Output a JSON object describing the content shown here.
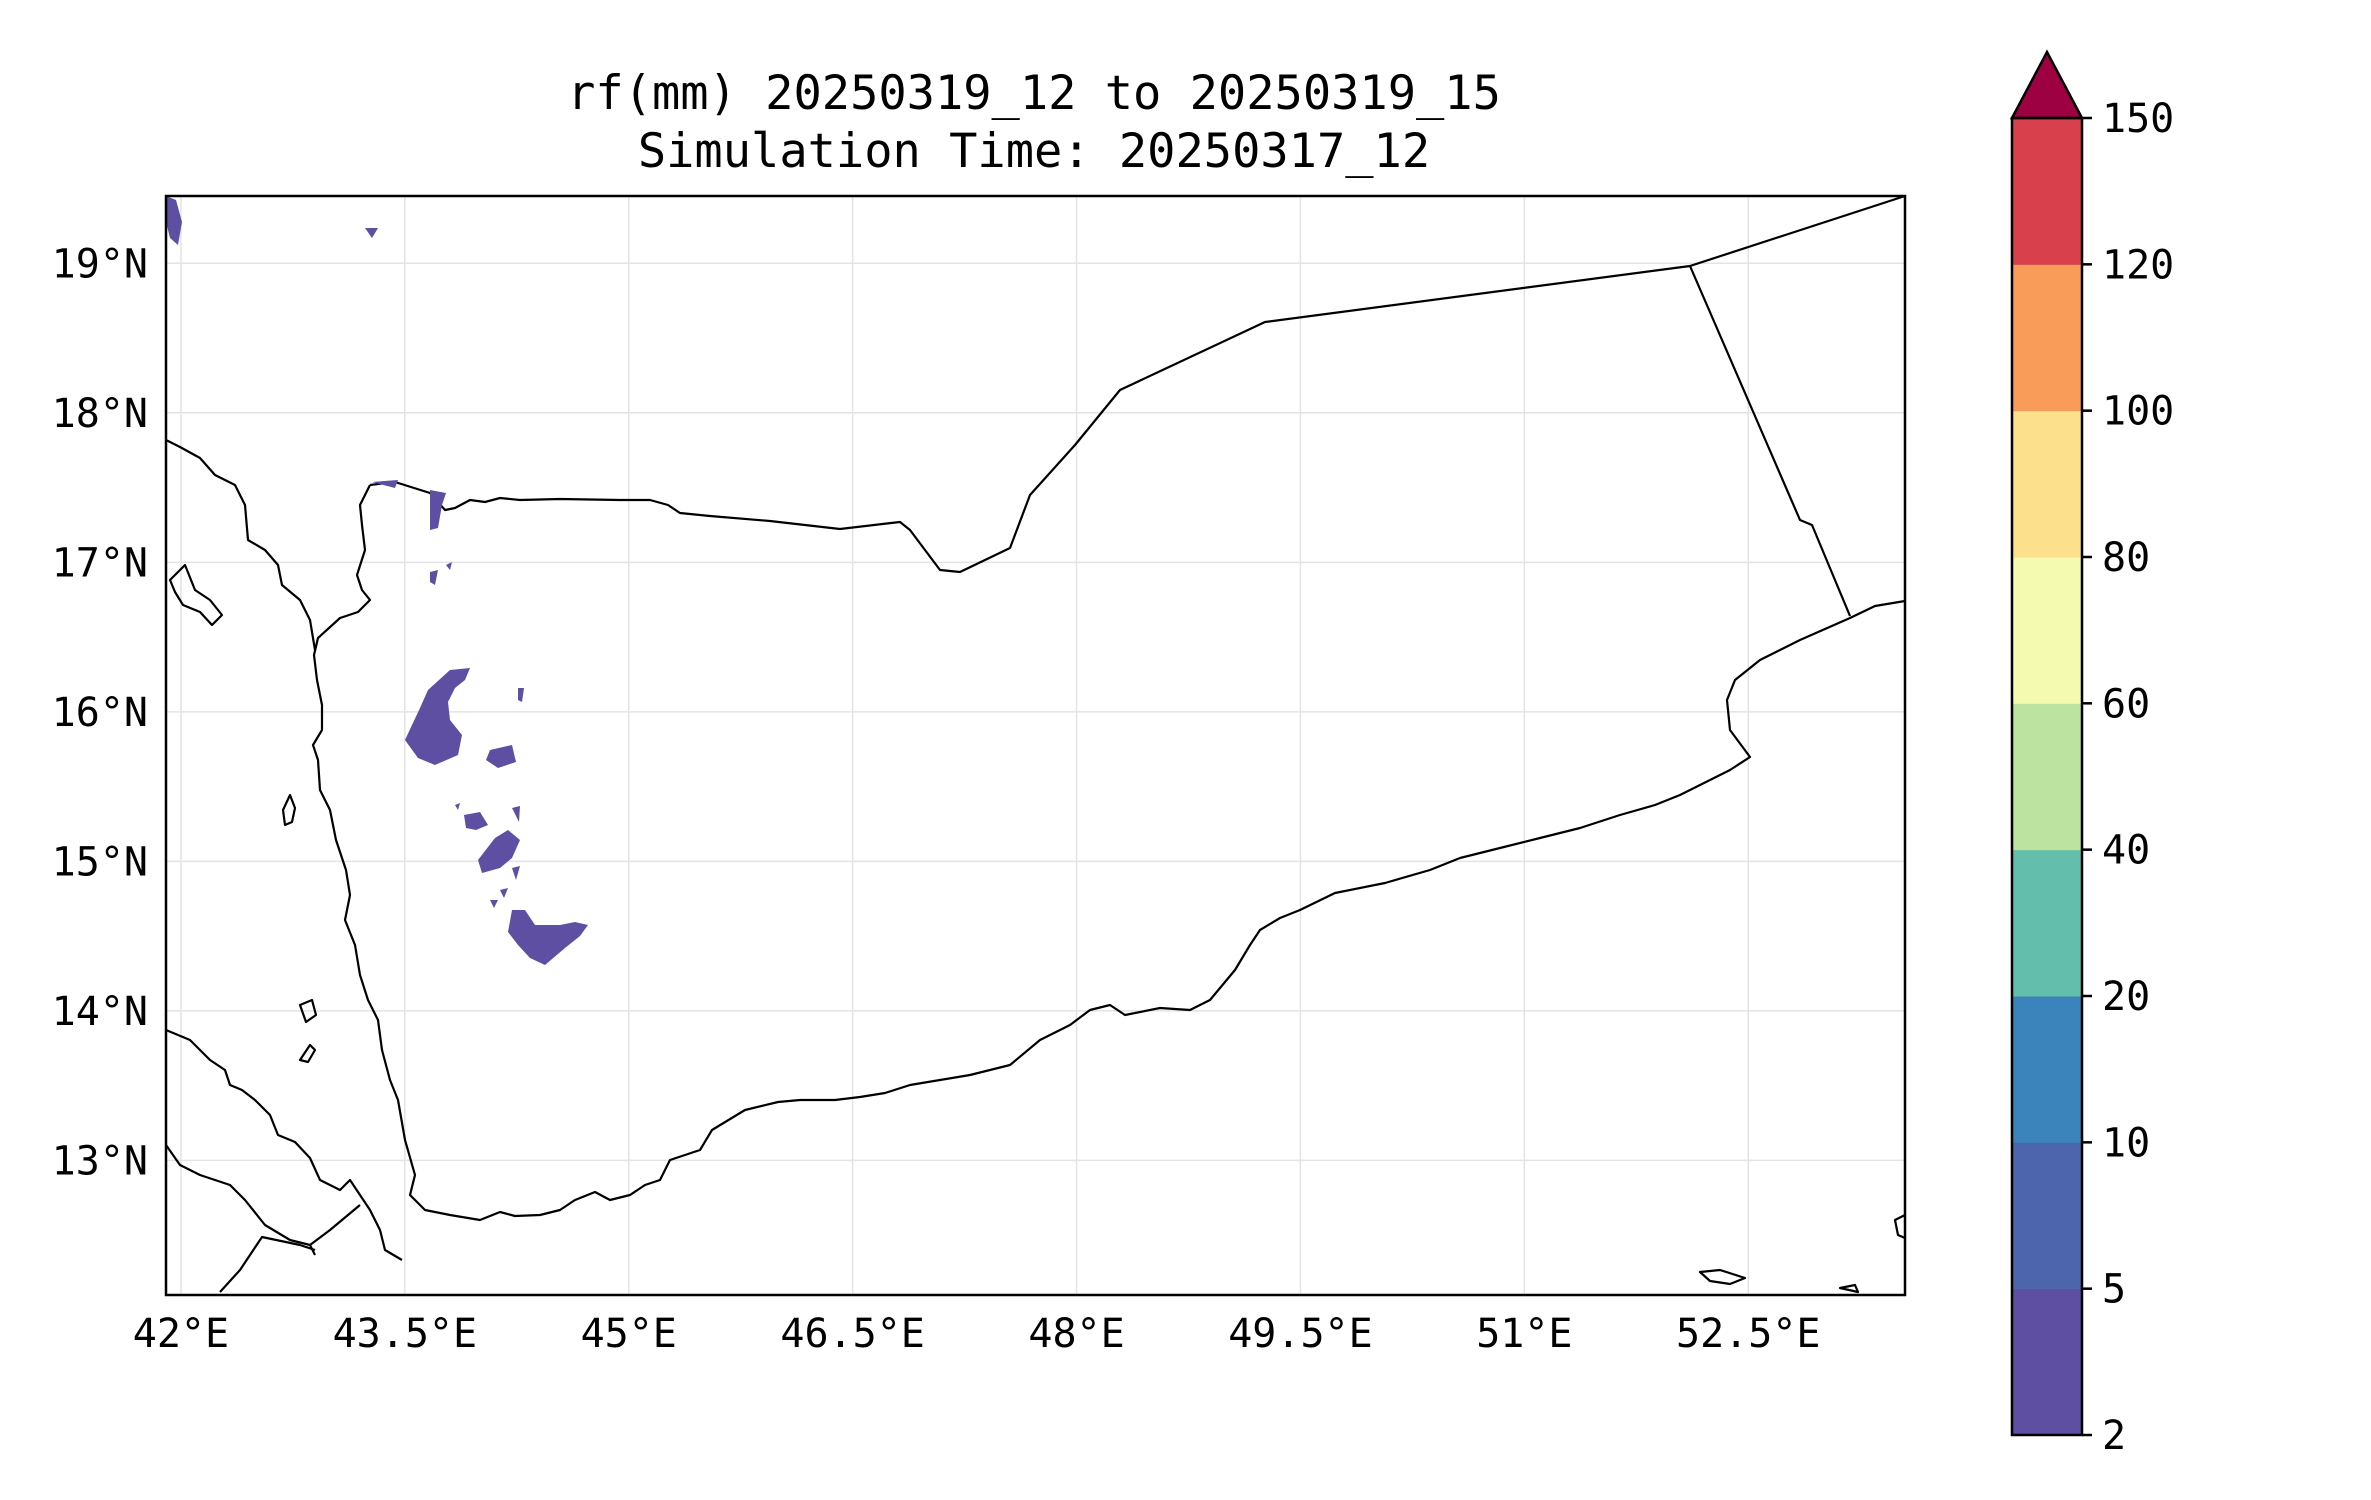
{
  "title": {
    "line1": "rf(mm) 20250319_12 to 20250319_15",
    "line2": "Simulation Time: 20250317_12"
  },
  "map": {
    "lon_range": [
      41.9,
      53.55
    ],
    "lat_range": [
      12.1,
      19.45
    ],
    "lon_ticks": [
      42,
      43.5,
      45,
      46.5,
      48,
      49.5,
      51,
      52.5
    ],
    "lon_tick_labels": [
      "42°E",
      "43.5°E",
      "45°E",
      "46.5°E",
      "48°E",
      "49.5°E",
      "51°E",
      "52.5°E"
    ],
    "lat_ticks": [
      13,
      14,
      15,
      16,
      17,
      18,
      19
    ],
    "lat_tick_labels": [
      "13°N",
      "14°N",
      "15°N",
      "16°N",
      "17°N",
      "18°N",
      "19°N"
    ],
    "grid": true,
    "rain_color": "#5e4fa2"
  },
  "colorbar": {
    "levels": [
      "2",
      "5",
      "10",
      "20",
      "40",
      "60",
      "80",
      "100",
      "120",
      "150"
    ],
    "colors": [
      "#5e4fa2",
      "#4d65ad",
      "#3b84bb",
      "#63bfab",
      "#bce4a0",
      "#f4fab0",
      "#fde08b",
      "#f99c5a",
      "#d8414b"
    ],
    "extend_color": "#9e0142",
    "extend": "max"
  }
}
